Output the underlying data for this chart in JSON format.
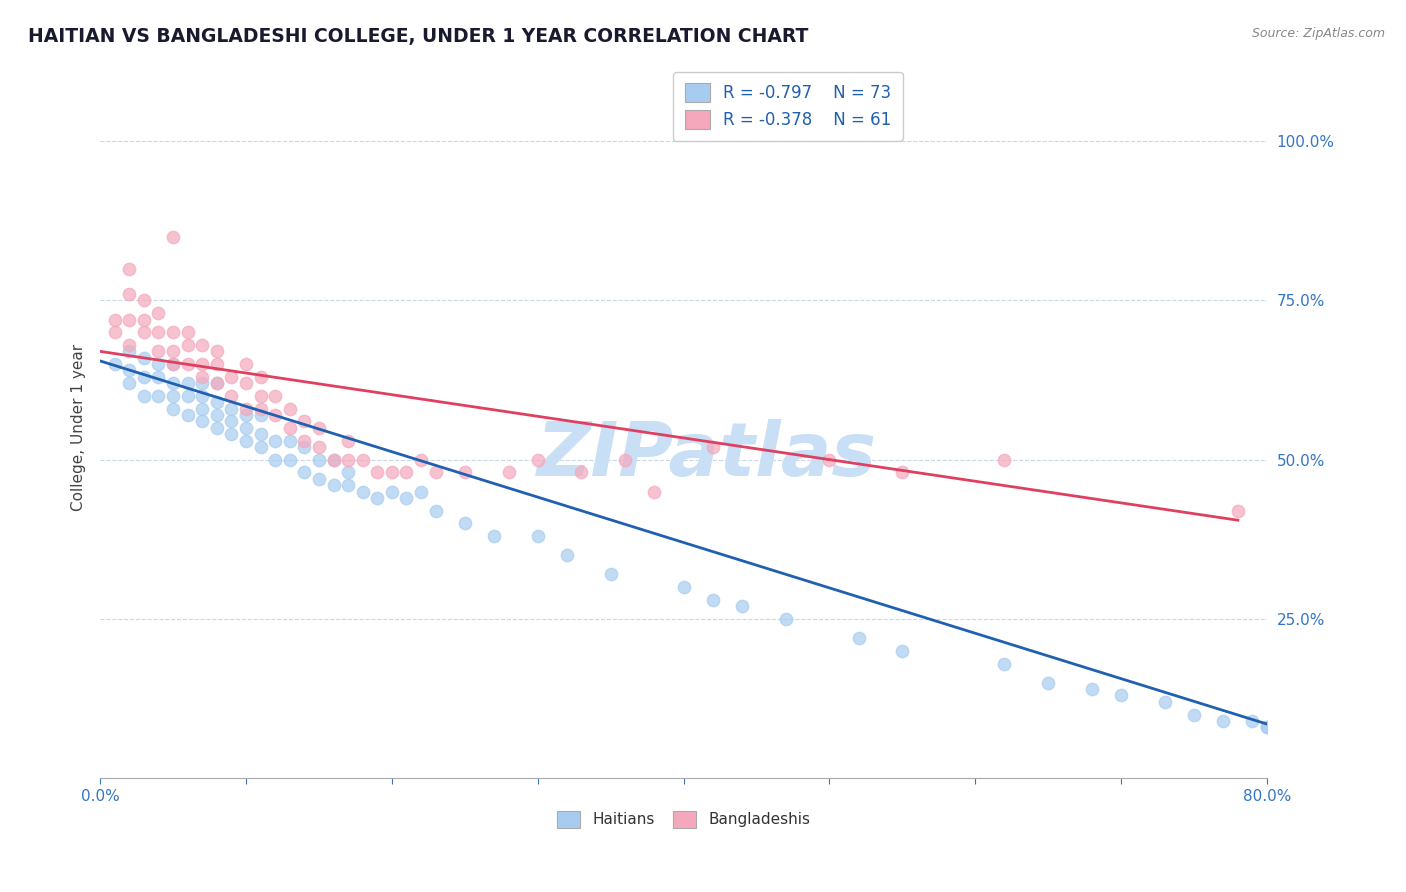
{
  "title": "HAITIAN VS BANGLADESHI COLLEGE, UNDER 1 YEAR CORRELATION CHART",
  "source_text": "Source: ZipAtlas.com",
  "ylabel": "College, Under 1 year",
  "xlim": [
    0.0,
    0.8
  ],
  "ylim": [
    0.0,
    1.1
  ],
  "xticks": [
    0.0,
    0.1,
    0.2,
    0.3,
    0.4,
    0.5,
    0.6,
    0.7,
    0.8
  ],
  "xticklabels": [
    "0.0%",
    "",
    "",
    "",
    "",
    "",
    "",
    "",
    "80.0%"
  ],
  "yticks_right": [
    0.0,
    0.25,
    0.5,
    0.75,
    1.0
  ],
  "yticklabels_right": [
    "",
    "25.0%",
    "50.0%",
    "75.0%",
    "100.0%"
  ],
  "haitian_color": "#a8ccf0",
  "bangladeshi_color": "#f5a8bc",
  "haitian_line_color": "#2060b0",
  "bangladeshi_line_color": "#e04060",
  "haitian_R": -0.797,
  "haitian_N": 73,
  "bangladeshi_R": -0.378,
  "bangladeshi_N": 61,
  "watermark": "ZIPatlas",
  "watermark_color": "#c8dff5",
  "legend_color": "#2060b0",
  "background_color": "#ffffff",
  "grid_color": "#c8d8e8",
  "haitian_scatter_x": [
    0.01,
    0.02,
    0.02,
    0.02,
    0.03,
    0.03,
    0.03,
    0.04,
    0.04,
    0.04,
    0.05,
    0.05,
    0.05,
    0.05,
    0.06,
    0.06,
    0.06,
    0.07,
    0.07,
    0.07,
    0.07,
    0.08,
    0.08,
    0.08,
    0.08,
    0.09,
    0.09,
    0.09,
    0.1,
    0.1,
    0.1,
    0.11,
    0.11,
    0.11,
    0.12,
    0.12,
    0.13,
    0.13,
    0.14,
    0.14,
    0.15,
    0.15,
    0.16,
    0.16,
    0.17,
    0.17,
    0.18,
    0.19,
    0.2,
    0.21,
    0.22,
    0.23,
    0.25,
    0.27,
    0.3,
    0.32,
    0.35,
    0.4,
    0.42,
    0.44,
    0.47,
    0.52,
    0.55,
    0.62,
    0.65,
    0.68,
    0.7,
    0.73,
    0.75,
    0.77,
    0.79,
    0.8,
    0.8
  ],
  "haitian_scatter_y": [
    0.65,
    0.62,
    0.64,
    0.67,
    0.6,
    0.63,
    0.66,
    0.6,
    0.63,
    0.65,
    0.58,
    0.6,
    0.62,
    0.65,
    0.57,
    0.6,
    0.62,
    0.56,
    0.58,
    0.6,
    0.62,
    0.55,
    0.57,
    0.59,
    0.62,
    0.54,
    0.56,
    0.58,
    0.53,
    0.55,
    0.57,
    0.52,
    0.54,
    0.57,
    0.5,
    0.53,
    0.5,
    0.53,
    0.48,
    0.52,
    0.47,
    0.5,
    0.46,
    0.5,
    0.46,
    0.48,
    0.45,
    0.44,
    0.45,
    0.44,
    0.45,
    0.42,
    0.4,
    0.38,
    0.38,
    0.35,
    0.32,
    0.3,
    0.28,
    0.27,
    0.25,
    0.22,
    0.2,
    0.18,
    0.15,
    0.14,
    0.13,
    0.12,
    0.1,
    0.09,
    0.09,
    0.08,
    0.08
  ],
  "bangladeshi_scatter_x": [
    0.01,
    0.01,
    0.02,
    0.02,
    0.02,
    0.02,
    0.03,
    0.03,
    0.03,
    0.04,
    0.04,
    0.04,
    0.05,
    0.05,
    0.05,
    0.05,
    0.06,
    0.06,
    0.06,
    0.07,
    0.07,
    0.07,
    0.08,
    0.08,
    0.08,
    0.09,
    0.09,
    0.1,
    0.1,
    0.1,
    0.11,
    0.11,
    0.11,
    0.12,
    0.12,
    0.13,
    0.13,
    0.14,
    0.14,
    0.15,
    0.15,
    0.16,
    0.17,
    0.17,
    0.18,
    0.19,
    0.2,
    0.21,
    0.22,
    0.23,
    0.25,
    0.28,
    0.3,
    0.33,
    0.36,
    0.38,
    0.42,
    0.5,
    0.55,
    0.62,
    0.78
  ],
  "bangladeshi_scatter_y": [
    0.7,
    0.72,
    0.68,
    0.72,
    0.76,
    0.8,
    0.7,
    0.72,
    0.75,
    0.67,
    0.7,
    0.73,
    0.65,
    0.67,
    0.7,
    0.85,
    0.65,
    0.68,
    0.7,
    0.63,
    0.65,
    0.68,
    0.62,
    0.65,
    0.67,
    0.6,
    0.63,
    0.58,
    0.62,
    0.65,
    0.58,
    0.6,
    0.63,
    0.57,
    0.6,
    0.55,
    0.58,
    0.53,
    0.56,
    0.52,
    0.55,
    0.5,
    0.5,
    0.53,
    0.5,
    0.48,
    0.48,
    0.48,
    0.5,
    0.48,
    0.48,
    0.48,
    0.5,
    0.48,
    0.5,
    0.45,
    0.52,
    0.5,
    0.48,
    0.5,
    0.42
  ]
}
